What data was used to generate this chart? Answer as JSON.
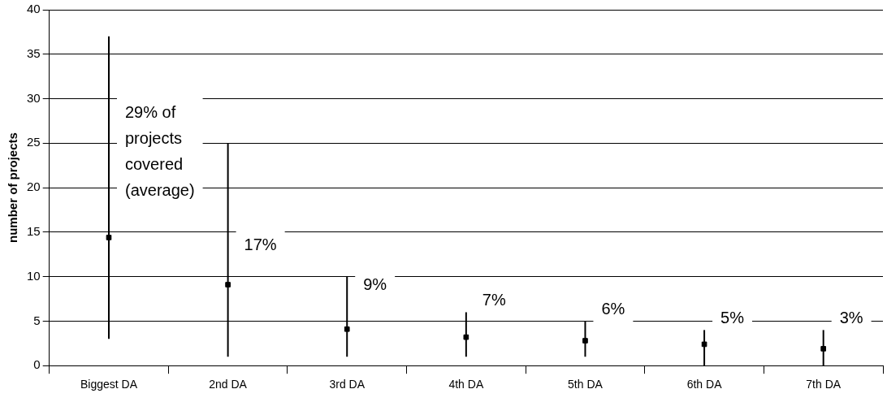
{
  "chart_data": {
    "type": "scatter",
    "ylabel": "number of projects",
    "categories": [
      "Biggest DA",
      "2nd DA",
      "3rd DA",
      "4th DA",
      "5th DA",
      "6th DA",
      "7th DA"
    ],
    "series": [
      {
        "color": "#000000",
        "values": [
          14.4,
          9.1,
          4.1,
          3.2,
          2.8,
          2.4,
          1.9
        ],
        "errors": [
          [
            3,
            37
          ],
          [
            1,
            25
          ],
          [
            1,
            10
          ],
          [
            1,
            6
          ],
          [
            1,
            5
          ],
          [
            0,
            4
          ],
          [
            0,
            4
          ]
        ]
      }
    ],
    "ylim": [
      0,
      40
    ],
    "yticks": [
      0,
      5,
      10,
      15,
      20,
      25,
      30,
      35,
      40
    ],
    "grid": "y",
    "legend": false,
    "annotations": [
      {
        "text": "29% of\nprojects\ncovered\n(average)",
        "x": "Biggest DA",
        "y": 24
      },
      {
        "text": "17%",
        "x": "2nd DA",
        "y": 13.5
      },
      {
        "text": "9%",
        "x": "3rd DA",
        "y": 9
      },
      "7%",
      "6%",
      "5%",
      "3%"
    ],
    "marker": "square"
  }
}
